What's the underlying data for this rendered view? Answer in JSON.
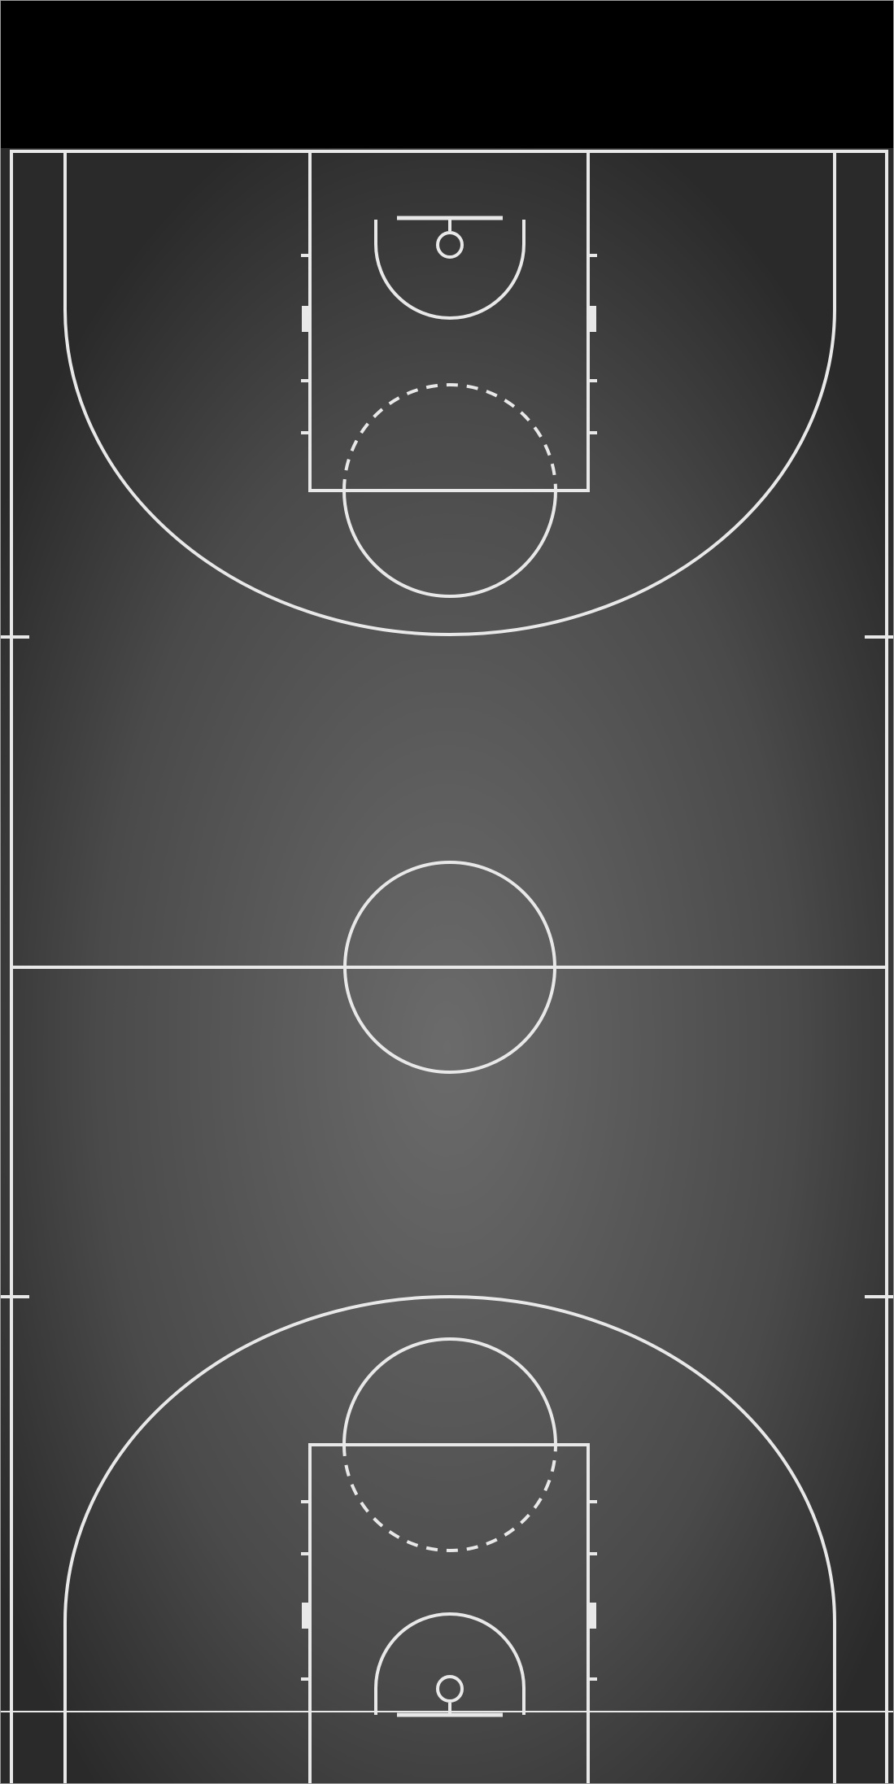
{
  "image": {
    "subject": "basketball-court",
    "orientation": "vertical",
    "palette": {
      "top_bar": "#000000",
      "floor_center": "#6b6b6b",
      "floor_edge": "#2a2a2a",
      "lines": "#e8e8e8",
      "frame": "#9a9a9a"
    }
  }
}
